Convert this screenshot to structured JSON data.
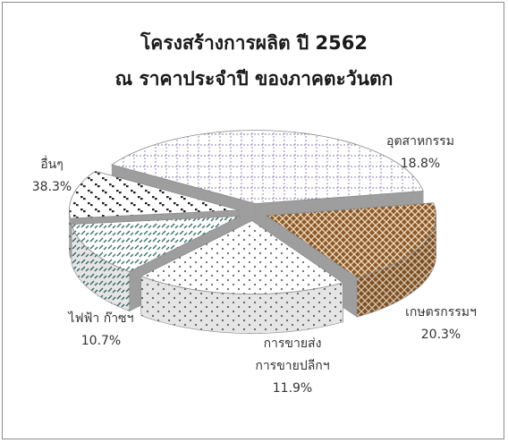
{
  "chart_data": {
    "type": "pie",
    "title": "โครงสร้างการผลิต ปี 2562",
    "subtitle": "ณ ราคาประจำปี ของภาคตะวันตก",
    "slices": [
      {
        "label_lines": [
          "อุตสาหกรรม"
        ],
        "value_label": "18.8%",
        "value": 18.8,
        "color": "#8b5a2b",
        "pattern": "crosshatch"
      },
      {
        "label_lines": [
          "เกษตรกรรมฯ"
        ],
        "value_label": "20.3%",
        "value": 20.3,
        "color": "#666666",
        "pattern": "dots"
      },
      {
        "label_lines": [
          "การขายส่ง",
          "การขายปลีกฯ"
        ],
        "value_label": "11.9%",
        "value": 11.9,
        "color": "#3a6d68",
        "pattern": "dashes"
      },
      {
        "label_lines": [
          "ไฟฟ้า ก๊าซฯ"
        ],
        "value_label": "10.7%",
        "value": 10.7,
        "color": "#333333",
        "pattern": "blocks"
      },
      {
        "label_lines": [
          "อื่นๆ"
        ],
        "value_label": "38.3%",
        "value": 38.3,
        "color": "#8a7aa8",
        "pattern": "grid"
      }
    ],
    "style": "3d-exploded-pie",
    "legend": "none"
  }
}
